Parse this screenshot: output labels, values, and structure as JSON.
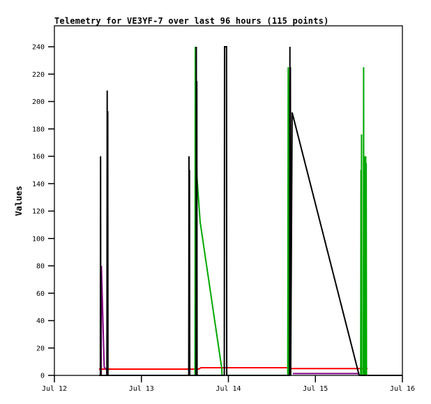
{
  "window": {
    "background": "#ffffff"
  },
  "chart_data": {
    "type": "line",
    "title": "Telemetry for VE3YF-7 over last 96 hours (115 points)",
    "xlabel": "",
    "ylabel": "Values",
    "x_ticks": [
      "Jul 12",
      "Jul 13",
      "Jul 14",
      "Jul 15",
      "Jul 16"
    ],
    "y_ticks": [
      0,
      20,
      40,
      60,
      80,
      100,
      120,
      140,
      160,
      180,
      200,
      220,
      240
    ],
    "x_domain_days": [
      0,
      4
    ],
    "y_domain": [
      0,
      240
    ],
    "grid": false,
    "legend": "none",
    "colors": {
      "series_black": "#000000",
      "series_green": "#00a800",
      "series_red": "#ff0000",
      "series_purple": "#800080",
      "frame": "#000000"
    },
    "series": [
      {
        "name": "red",
        "color": "#ff0000",
        "width": 2,
        "segments": [
          [
            [
              0.513,
              4.6
            ],
            [
              1.657,
              4.6
            ],
            [
              1.685,
              5.6
            ],
            [
              2.708,
              5.6
            ],
            [
              2.713,
              5.0
            ],
            [
              3.599,
              5.0
            ]
          ]
        ]
      },
      {
        "name": "purple",
        "color": "#800080",
        "width": 2,
        "segments": [
          [
            [
              0.537,
              0
            ],
            [
              0.54,
              80
            ],
            [
              0.572,
              6
            ],
            [
              0.601,
              4
            ],
            [
              0.604,
              0
            ]
          ],
          [
            [
              2.742,
              1.3
            ],
            [
              3.499,
              1.3
            ],
            [
              3.502,
              0
            ]
          ]
        ]
      },
      {
        "name": "green",
        "color": "#00a800",
        "width": 2,
        "segments": [
          [
            [
              1.616,
              0
            ],
            [
              1.619,
              240
            ],
            [
              1.622,
              160
            ],
            [
              1.675,
              112
            ],
            [
              1.924,
              5
            ],
            [
              1.927,
              0
            ]
          ],
          [
            [
              2.682,
              0
            ],
            [
              2.685,
              128
            ],
            [
              2.688,
              225
            ],
            [
              2.691,
              208
            ],
            [
              2.694,
              0
            ]
          ],
          [
            [
              3.521,
              0
            ],
            [
              3.524,
              150
            ],
            [
              3.527,
              0
            ],
            [
              3.53,
              176
            ],
            [
              3.533,
              0
            ],
            [
              3.551,
              0
            ],
            [
              3.554,
              225
            ],
            [
              3.557,
              0
            ],
            [
              3.56,
              160
            ],
            [
              3.563,
              0
            ],
            [
              3.566,
              160
            ],
            [
              3.569,
              0
            ],
            [
              3.572,
              158
            ],
            [
              3.575,
              0
            ],
            [
              3.578,
              160
            ],
            [
              3.581,
              0
            ],
            [
              3.584,
              155
            ],
            [
              3.587,
              0
            ]
          ]
        ]
      },
      {
        "name": "black",
        "color": "#000000",
        "width": 2,
        "segments": [
          [
            [
              0.513,
              0
            ],
            [
              0.528,
              0
            ],
            [
              0.531,
              160
            ],
            [
              0.534,
              0
            ],
            [
              0.604,
              0
            ],
            [
              0.607,
              208
            ],
            [
              0.61,
              0
            ],
            [
              0.613,
              193
            ],
            [
              0.616,
              0
            ],
            [
              1.544,
              0
            ],
            [
              1.547,
              160
            ],
            [
              1.55,
              0
            ],
            [
              1.553,
              150
            ],
            [
              1.556,
              0
            ],
            [
              1.628,
              0
            ],
            [
              1.631,
              240
            ],
            [
              1.634,
              0
            ],
            [
              1.637,
              215
            ],
            [
              1.64,
              0
            ],
            [
              1.953,
              0
            ],
            [
              1.956,
              240
            ],
            [
              1.978,
              240
            ],
            [
              1.981,
              0
            ],
            [
              2.704,
              0
            ],
            [
              2.707,
              240
            ],
            [
              2.71,
              0
            ],
            [
              2.713,
              225
            ],
            [
              2.716,
              0
            ],
            [
              2.733,
              192
            ],
            [
              3.503,
              0
            ],
            [
              4.0,
              0
            ]
          ]
        ]
      }
    ]
  }
}
